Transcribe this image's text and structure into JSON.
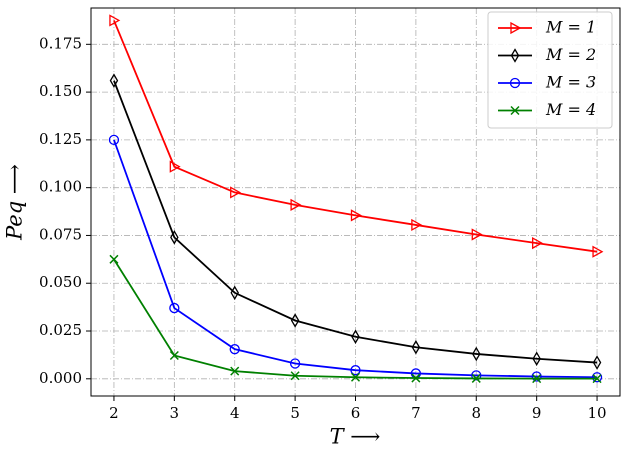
{
  "chart_data": {
    "type": "line",
    "xlabel": "T ⟶",
    "ylabel": "Peq ⟶",
    "x": [
      2,
      3,
      4,
      5,
      6,
      7,
      8,
      9,
      10
    ],
    "series": [
      {
        "name": "M = 1",
        "color": "#ff0000",
        "marker": "triangle-right",
        "values": [
          0.1875,
          0.111,
          0.0975,
          0.091,
          0.0855,
          0.0805,
          0.0755,
          0.071,
          0.0665
        ]
      },
      {
        "name": "M = 2",
        "color": "#000000",
        "marker": "thin-diamond",
        "values": [
          0.156,
          0.074,
          0.045,
          0.0305,
          0.022,
          0.0165,
          0.013,
          0.0105,
          0.0085
        ]
      },
      {
        "name": "M = 3",
        "color": "#0000ff",
        "marker": "circle",
        "values": [
          0.125,
          0.037,
          0.0155,
          0.008,
          0.0045,
          0.0028,
          0.0018,
          0.0012,
          0.0008
        ]
      },
      {
        "name": "M = 4",
        "color": "#008000",
        "marker": "x",
        "values": [
          0.0625,
          0.0122,
          0.004,
          0.0016,
          0.0008,
          0.0004,
          0.0002,
          0.0001,
          0.0001
        ]
      }
    ],
    "xlim": [
      1.62,
      10.38
    ],
    "ylim": [
      -0.009,
      0.194
    ],
    "xticks": [
      2,
      3,
      4,
      5,
      6,
      7,
      8,
      9,
      10
    ],
    "yticks": [
      {
        "value": 0,
        "label": "0.000"
      },
      {
        "value": 0.025,
        "label": "0.025"
      },
      {
        "value": 0.05,
        "label": "0.050"
      },
      {
        "value": 0.075,
        "label": "0.075"
      },
      {
        "value": 0.1,
        "label": "0.100"
      },
      {
        "value": 0.125,
        "label": "0.125"
      },
      {
        "value": 0.15,
        "label": "0.150"
      },
      {
        "value": 0.175,
        "label": "0.175"
      }
    ],
    "grid": true,
    "legend": "upper right"
  }
}
